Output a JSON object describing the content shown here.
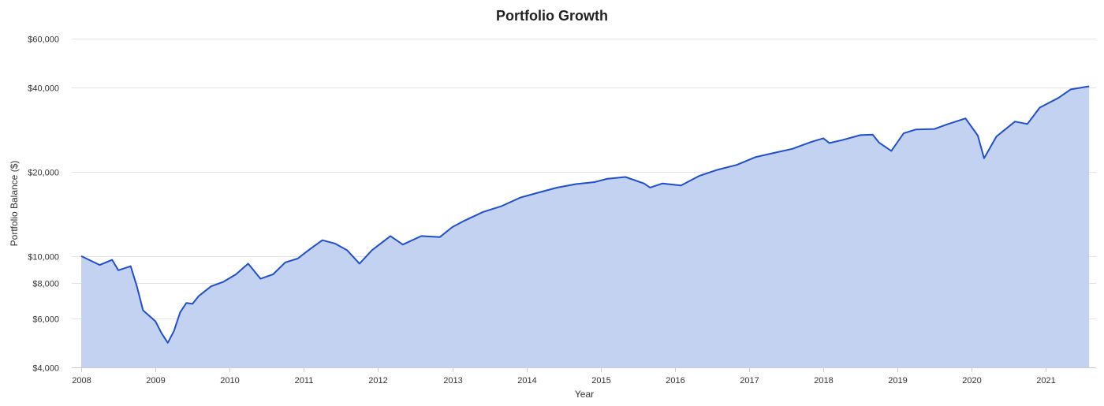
{
  "chart_data": {
    "type": "area",
    "title": "Portfolio Growth",
    "xlabel": "Year",
    "ylabel": "Portfolio Balance ($)",
    "y_scale": "log",
    "ylim": [
      4000,
      60000
    ],
    "xlim": [
      "2008-01",
      "2021-08"
    ],
    "y_ticks": [
      {
        "value": 4000,
        "label": "$4,000"
      },
      {
        "value": 6000,
        "label": "$6,000"
      },
      {
        "value": 8000,
        "label": "$8,000"
      },
      {
        "value": 10000,
        "label": "$10,000"
      },
      {
        "value": 20000,
        "label": "$20,000"
      },
      {
        "value": 40000,
        "label": "$40,000"
      },
      {
        "value": 60000,
        "label": "$60,000"
      }
    ],
    "x_ticks": [
      "2008",
      "2009",
      "2010",
      "2011",
      "2012",
      "2013",
      "2014",
      "2015",
      "2016",
      "2017",
      "2018",
      "2019",
      "2020",
      "2021"
    ],
    "grid": true,
    "legend": "none",
    "colors": {
      "line": "#1f4fcf",
      "fill": "#c2d2f0"
    },
    "series": [
      {
        "x": [
          "2008-01",
          "2008-04",
          "2008-06",
          "2008-07",
          "2008-09",
          "2008-10",
          "2008-11",
          "2009-01",
          "2009-02",
          "2009-03",
          "2009-04",
          "2009-05",
          "2009-06",
          "2009-07",
          "2009-08",
          "2009-10",
          "2009-12",
          "2010-02",
          "2010-04",
          "2010-06",
          "2010-08",
          "2010-10",
          "2010-12",
          "2011-02",
          "2011-04",
          "2011-06",
          "2011-08",
          "2011-10",
          "2011-12",
          "2012-03",
          "2012-05",
          "2012-08",
          "2012-11",
          "2013-01",
          "2013-03",
          "2013-06",
          "2013-09",
          "2013-12",
          "2014-03",
          "2014-06",
          "2014-09",
          "2014-12",
          "2015-02",
          "2015-05",
          "2015-08",
          "2015-09",
          "2015-11",
          "2016-02",
          "2016-05",
          "2016-08",
          "2016-11",
          "2017-02",
          "2017-05",
          "2017-08",
          "2017-11",
          "2018-01",
          "2018-02",
          "2018-04",
          "2018-07",
          "2018-09",
          "2018-10",
          "2018-12",
          "2019-02",
          "2019-04",
          "2019-07",
          "2019-09",
          "2019-12",
          "2020-02",
          "2020-03",
          "2020-05",
          "2020-08",
          "2020-10",
          "2020-12",
          "2021-03",
          "2021-05",
          "2021-08"
        ],
        "values": [
          10000,
          9300,
          9700,
          8900,
          9200,
          7800,
          6400,
          5850,
          5300,
          4900,
          5400,
          6300,
          6800,
          6750,
          7200,
          7800,
          8100,
          8600,
          9400,
          8300,
          8600,
          9500,
          9800,
          10600,
          11400,
          11100,
          10500,
          9400,
          10500,
          11800,
          11000,
          11800,
          11700,
          12700,
          13400,
          14400,
          15100,
          16200,
          16900,
          17600,
          18100,
          18400,
          18900,
          19200,
          18200,
          17600,
          18200,
          17900,
          19400,
          20400,
          21200,
          22600,
          23400,
          24200,
          25600,
          26400,
          25400,
          26000,
          27100,
          27200,
          25500,
          23800,
          27500,
          28400,
          28500,
          29600,
          31100,
          27000,
          22400,
          26800,
          30300,
          29700,
          34000,
          36800,
          39500,
          40500
        ]
      }
    ]
  }
}
